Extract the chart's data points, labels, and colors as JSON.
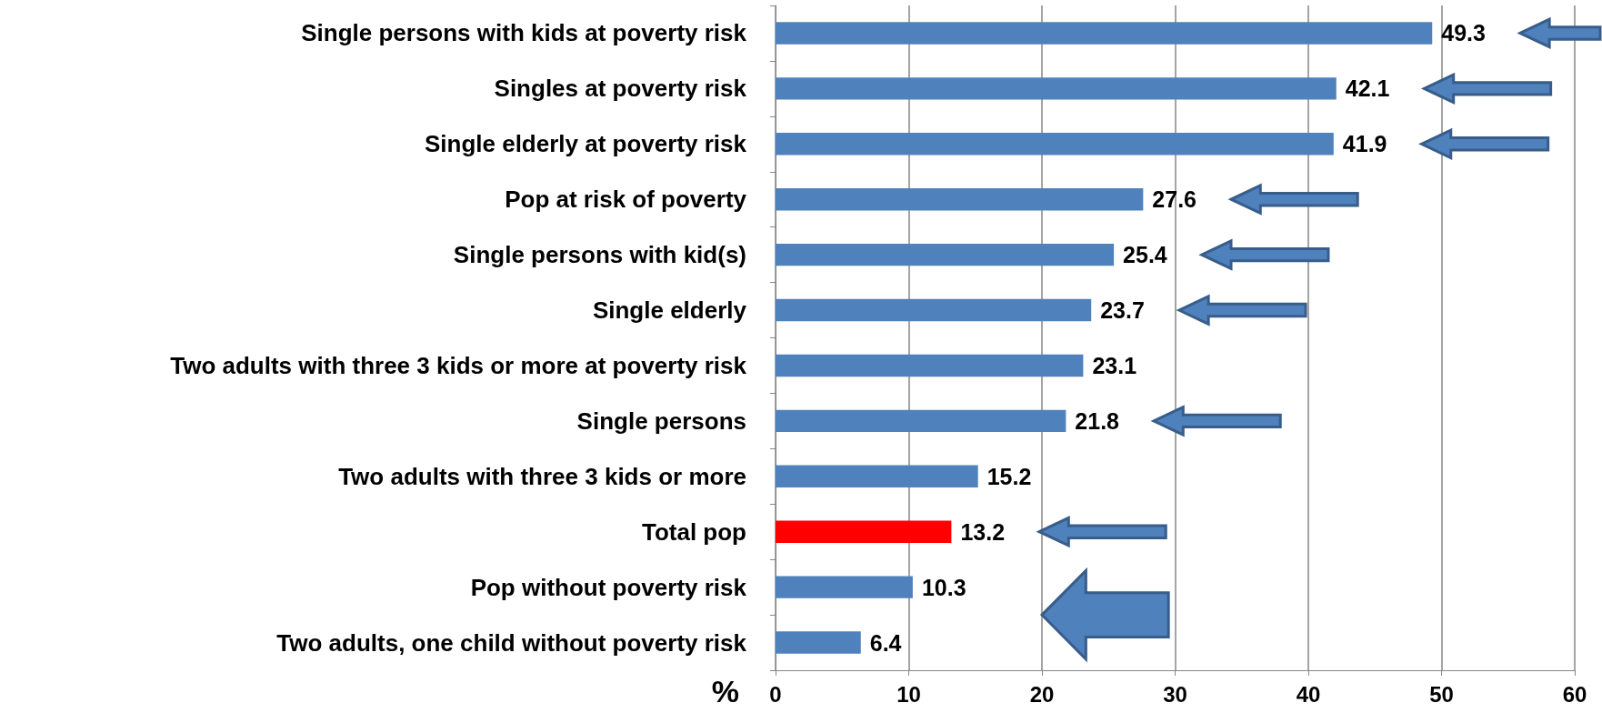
{
  "chart_data": {
    "type": "bar",
    "orientation": "horizontal",
    "xlabel": "%",
    "categories": [
      "Single persons with kids at poverty risk",
      "Singles at poverty risk",
      "Single elderly at poverty risk",
      "Pop at risk of poverty",
      "Single persons with kid(s)",
      "Single elderly",
      "Two adults with three 3 kids or more at poverty risk",
      "Single persons",
      "Two adults with three 3 kids or more",
      "Total pop",
      "Pop without poverty risk",
      "Two adults, one child without poverty risk"
    ],
    "values": [
      49.3,
      42.1,
      41.9,
      27.6,
      25.4,
      23.7,
      23.1,
      21.8,
      15.2,
      13.2,
      10.3,
      6.4
    ],
    "colors": [
      "#4f81bd",
      "#4f81bd",
      "#4f81bd",
      "#4f81bd",
      "#4f81bd",
      "#4f81bd",
      "#4f81bd",
      "#4f81bd",
      "#4f81bd",
      "#ff0000",
      "#4f81bd",
      "#4f81bd"
    ],
    "xlim": [
      0,
      60
    ],
    "xticks": [
      0,
      10,
      20,
      30,
      40,
      50,
      60
    ],
    "grid": "x",
    "data_labels": true
  }
}
